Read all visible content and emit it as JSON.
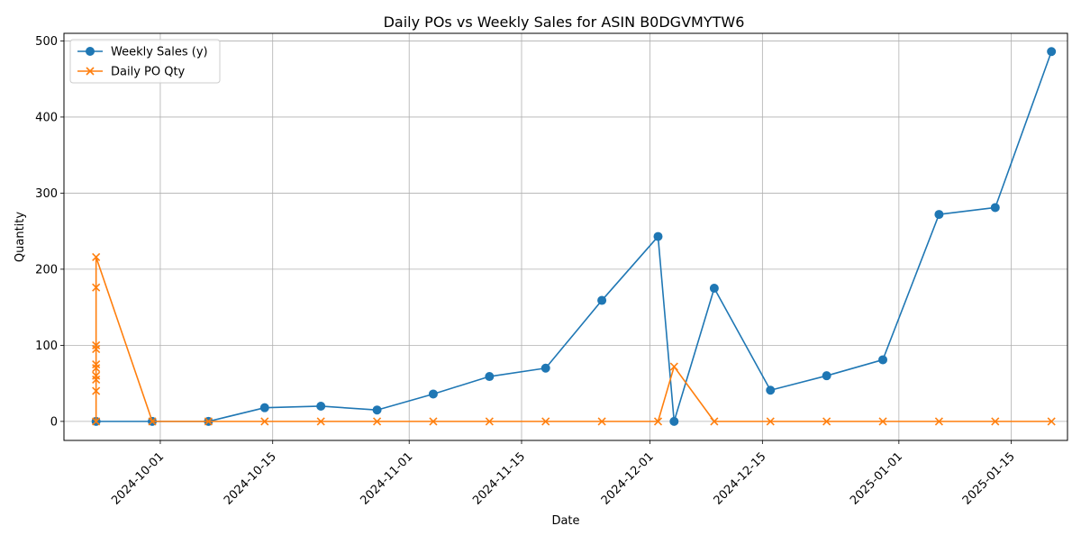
{
  "chart_data": {
    "type": "line",
    "title": "Daily POs vs Weekly Sales for ASIN B0DGVMYTW6",
    "xlabel": "Date",
    "ylabel": "Quantity",
    "x_axis_type": "date",
    "xlim": [
      "2024-09-19",
      "2025-01-22"
    ],
    "ylim": [
      -25,
      510
    ],
    "grid": true,
    "legend_position": "top-left",
    "x_ticks": [
      "2024-10-01",
      "2024-10-15",
      "2024-11-01",
      "2024-11-15",
      "2024-12-01",
      "2024-12-15",
      "2025-01-01",
      "2025-01-15"
    ],
    "y_ticks": [
      "0",
      "100",
      "200",
      "300",
      "400",
      "500"
    ],
    "series": [
      {
        "name": "Weekly Sales (y)",
        "color": "#1f77b4",
        "marker": "circle",
        "points": [
          {
            "x": "2024-09-23",
            "y": 0
          },
          {
            "x": "2024-09-30",
            "y": 0
          },
          {
            "x": "2024-10-07",
            "y": 0
          },
          {
            "x": "2024-10-14",
            "y": 18
          },
          {
            "x": "2024-10-21",
            "y": 20
          },
          {
            "x": "2024-10-28",
            "y": 15
          },
          {
            "x": "2024-11-04",
            "y": 36
          },
          {
            "x": "2024-11-11",
            "y": 59
          },
          {
            "x": "2024-11-18",
            "y": 70
          },
          {
            "x": "2024-11-25",
            "y": 159
          },
          {
            "x": "2024-12-02",
            "y": 243
          },
          {
            "x": "2024-12-04",
            "y": 0
          },
          {
            "x": "2024-12-09",
            "y": 175
          },
          {
            "x": "2024-12-16",
            "y": 41
          },
          {
            "x": "2024-12-23",
            "y": 60
          },
          {
            "x": "2024-12-30",
            "y": 81
          },
          {
            "x": "2025-01-06",
            "y": 272
          },
          {
            "x": "2025-01-13",
            "y": 281
          },
          {
            "x": "2025-01-20",
            "y": 486
          }
        ]
      },
      {
        "name": "Daily PO Qty",
        "color": "#ff7f0e",
        "marker": "x",
        "points": [
          {
            "x": "2024-09-23",
            "y": 0
          },
          {
            "x": "2024-09-23",
            "y": 40
          },
          {
            "x": "2024-09-23",
            "y": 55
          },
          {
            "x": "2024-09-23",
            "y": 60
          },
          {
            "x": "2024-09-23",
            "y": 70
          },
          {
            "x": "2024-09-23",
            "y": 75
          },
          {
            "x": "2024-09-23",
            "y": 95
          },
          {
            "x": "2024-09-23",
            "y": 100
          },
          {
            "x": "2024-09-23",
            "y": 176
          },
          {
            "x": "2024-09-23",
            "y": 216
          },
          {
            "x": "2024-09-30",
            "y": 0
          },
          {
            "x": "2024-10-07",
            "y": 0
          },
          {
            "x": "2024-10-14",
            "y": 0
          },
          {
            "x": "2024-10-21",
            "y": 0
          },
          {
            "x": "2024-10-28",
            "y": 0
          },
          {
            "x": "2024-11-04",
            "y": 0
          },
          {
            "x": "2024-11-11",
            "y": 0
          },
          {
            "x": "2024-11-18",
            "y": 0
          },
          {
            "x": "2024-11-25",
            "y": 0
          },
          {
            "x": "2024-12-02",
            "y": 0
          },
          {
            "x": "2024-12-04",
            "y": 72
          },
          {
            "x": "2024-12-09",
            "y": 0
          },
          {
            "x": "2024-12-16",
            "y": 0
          },
          {
            "x": "2024-12-23",
            "y": 0
          },
          {
            "x": "2024-12-30",
            "y": 0
          },
          {
            "x": "2025-01-06",
            "y": 0
          },
          {
            "x": "2025-01-13",
            "y": 0
          },
          {
            "x": "2025-01-20",
            "y": 0
          }
        ]
      }
    ]
  }
}
